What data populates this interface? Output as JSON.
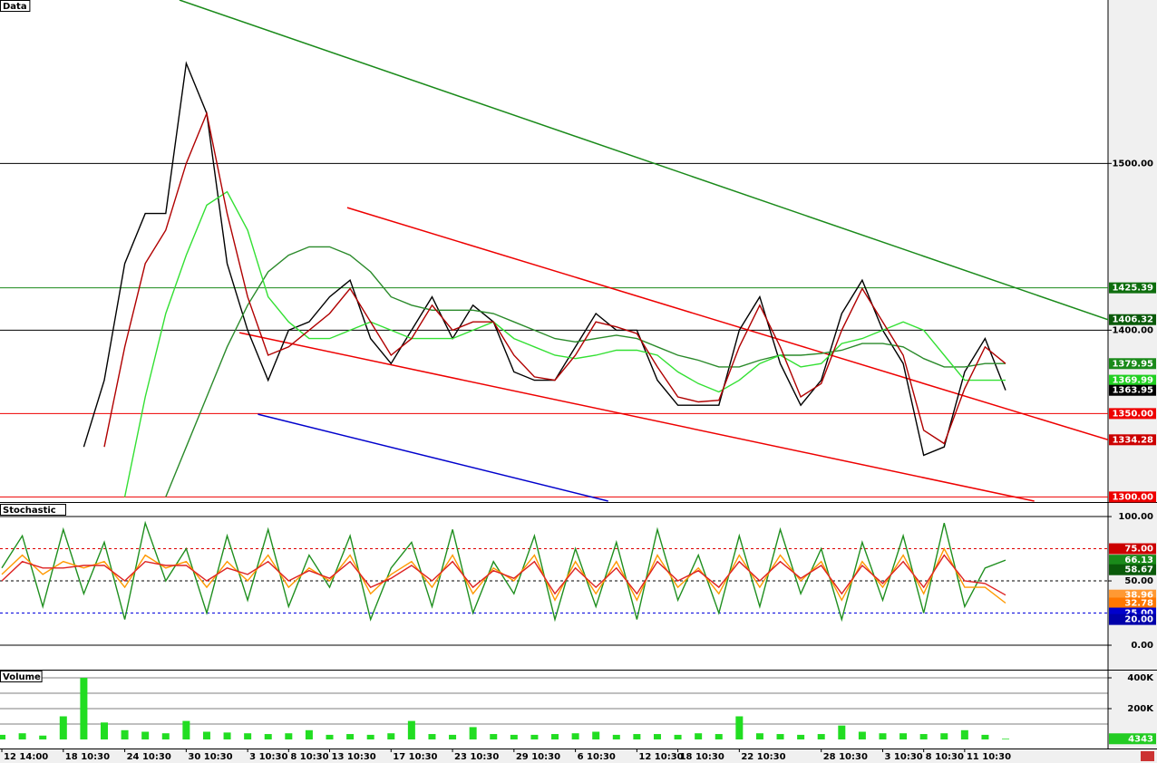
{
  "chart_data": [
    {
      "type": "line",
      "title": "Data",
      "xlim": [
        -0.09,
        54
      ],
      "ylim": [
        1297.5,
        1598
      ],
      "yticks": [
        {
          "value": 1400,
          "label": "1400.00"
        },
        {
          "value": 1500,
          "label": "1500.00"
        }
      ],
      "hlines": [
        {
          "value": 1500,
          "color": "#000000"
        },
        {
          "value": 1425.39,
          "color": "#1a8a1a"
        },
        {
          "value": 1400,
          "color": "#000000"
        },
        {
          "value": 1350,
          "color": "#ee0000"
        },
        {
          "value": 1300,
          "color": "#ee0000"
        }
      ],
      "trendlines": [
        {
          "color": "#1a8a1a",
          "x": [
            8.67,
            54
          ],
          "values": [
            1598,
            1406.32
          ]
        },
        {
          "color": "#ee0000",
          "x": [
            16.86,
            54
          ],
          "values": [
            1473.5,
            1334.28
          ]
        },
        {
          "color": "#ee0000",
          "x": [
            11.6,
            50.4
          ],
          "values": [
            1398.5,
            1297.5
          ]
        },
        {
          "color": "#0000cc",
          "x": [
            12.5,
            29.6
          ],
          "values": [
            1349.6,
            1297.5
          ]
        }
      ],
      "series": [
        {
          "color": "#000000",
          "values": [
            null,
            null,
            null,
            null,
            1330,
            1370,
            1440,
            1470,
            1470,
            1560,
            1530,
            1440,
            1400,
            1370,
            1400,
            1405,
            1420,
            1430,
            1395,
            1380,
            1400,
            1420,
            1395,
            1415,
            1405,
            1375,
            1370,
            1370,
            1390,
            1410,
            1400,
            1400,
            1370,
            1355,
            1355,
            1355,
            1400,
            1420,
            1380,
            1355,
            1370,
            1410,
            1430,
            1400,
            1380,
            1325,
            1330,
            1375,
            1395,
            1364
          ]
        },
        {
          "color": "#2a8a2a",
          "values": [
            null,
            null,
            null,
            null,
            null,
            null,
            null,
            null,
            1300,
            1330,
            1360,
            1390,
            1415,
            1435,
            1445,
            1450,
            1450,
            1445,
            1435,
            1420,
            1415,
            1412,
            1412,
            1412,
            1410,
            1405,
            1400,
            1395,
            1393,
            1395,
            1397,
            1395,
            1390,
            1385,
            1382,
            1378,
            1378,
            1382,
            1385,
            1385,
            1386,
            1388,
            1392,
            1392,
            1390,
            1383,
            1378,
            1378,
            1380,
            1380
          ]
        },
        {
          "color": "#33e033",
          "values": [
            null,
            null,
            null,
            null,
            null,
            null,
            1300,
            1360,
            1410,
            1445,
            1475,
            1483,
            1460,
            1420,
            1405,
            1395,
            1395,
            1400,
            1405,
            1400,
            1395,
            1395,
            1395,
            1400,
            1405,
            1395,
            1390,
            1385,
            1383,
            1385,
            1388,
            1388,
            1385,
            1375,
            1368,
            1363,
            1370,
            1380,
            1385,
            1378,
            1380,
            1392,
            1395,
            1400,
            1405,
            1400,
            1385,
            1370,
            1370,
            1370
          ]
        },
        {
          "color": "#b00000",
          "values": [
            null,
            null,
            null,
            null,
            null,
            1330,
            1390,
            1440,
            1460,
            1500,
            1530,
            1470,
            1420,
            1385,
            1390,
            1400,
            1410,
            1425,
            1405,
            1385,
            1395,
            1415,
            1400,
            1405,
            1405,
            1385,
            1372,
            1370,
            1385,
            1405,
            1402,
            1398,
            1378,
            1360,
            1357,
            1358,
            1390,
            1415,
            1390,
            1360,
            1368,
            1400,
            1425,
            1405,
            1385,
            1340,
            1332,
            1365,
            1390,
            1380
          ]
        }
      ],
      "tags": [
        {
          "value": 1425.39,
          "color": "#0e6e0e"
        },
        {
          "value": 1406.32,
          "color": "#0a5a0a"
        },
        {
          "value": 1379.95,
          "color": "#1a8a1a"
        },
        {
          "value": 1369.99,
          "color": "#22d022"
        },
        {
          "value": 1363.95,
          "color": "#000000"
        },
        {
          "value": 1350,
          "label": "1350.00",
          "color": "#ee0000"
        },
        {
          "value": 1334.28,
          "color": "#cc0000"
        },
        {
          "value": 1300,
          "label": "1300.00",
          "color": "#ee0000"
        }
      ]
    },
    {
      "type": "line",
      "title": "Stochastic",
      "ylim": [
        -18.3,
        109.9
      ],
      "yticks": [
        {
          "value": 100,
          "label": "100.00"
        },
        {
          "value": 50,
          "label": "50.00"
        },
        {
          "value": 0,
          "label": "0.00"
        }
      ],
      "hlines": [
        {
          "value": 100,
          "color": "#000000"
        },
        {
          "value": 75,
          "color": "#dd0000",
          "dashed": true
        },
        {
          "value": 50,
          "color": "#000000",
          "dashed": true
        },
        {
          "value": 25,
          "color": "#0000dd",
          "dashed": true
        },
        {
          "value": 0,
          "color": "#000000"
        }
      ],
      "series": [
        {
          "color": "#1f8f1f",
          "values": [
            60,
            85,
            30,
            90,
            40,
            80,
            20,
            95,
            50,
            75,
            25,
            85,
            35,
            90,
            30,
            70,
            45,
            85,
            20,
            60,
            80,
            30,
            90,
            25,
            65,
            40,
            85,
            20,
            75,
            30,
            80,
            20,
            90,
            35,
            70,
            25,
            85,
            30,
            90,
            40,
            75,
            20,
            80,
            35,
            85,
            25,
            95,
            30,
            60,
            66.13
          ]
        },
        {
          "color": "#ff9900",
          "values": [
            55,
            70,
            55,
            65,
            60,
            65,
            45,
            70,
            60,
            65,
            45,
            65,
            50,
            70,
            45,
            60,
            50,
            70,
            40,
            55,
            65,
            45,
            70,
            40,
            60,
            50,
            70,
            35,
            65,
            40,
            65,
            35,
            70,
            45,
            60,
            40,
            70,
            45,
            70,
            50,
            65,
            35,
            65,
            45,
            70,
            40,
            75,
            45,
            45,
            32.78
          ]
        },
        {
          "color": "#dd2222",
          "values": [
            50,
            65,
            60,
            60,
            62,
            62,
            50,
            65,
            62,
            62,
            50,
            60,
            55,
            65,
            50,
            58,
            52,
            65,
            45,
            52,
            62,
            50,
            65,
            45,
            58,
            52,
            65,
            40,
            60,
            45,
            60,
            40,
            65,
            50,
            58,
            45,
            65,
            50,
            65,
            52,
            62,
            40,
            62,
            48,
            65,
            45,
            70,
            50,
            48,
            38.96
          ]
        }
      ],
      "tags": [
        {
          "value": 75,
          "label": "75.00",
          "color": "#cc0000"
        },
        {
          "value": 66.13,
          "color": "#1a8a1a"
        },
        {
          "value": 58.67,
          "color": "#0a5a0a"
        },
        {
          "value": 38.96,
          "color": "#ff9933"
        },
        {
          "value": 32.78,
          "color": "#ff7700"
        },
        {
          "value": 25,
          "label": "25.00",
          "color": "#0000cc"
        },
        {
          "value": 20,
          "label": "20.00",
          "color": "#0000aa"
        }
      ]
    },
    {
      "type": "bar",
      "title": "Volume",
      "color": "#22dd22",
      "ylim": [
        -58800,
        447000
      ],
      "yticks": [
        {
          "value": 200000,
          "label": "200K"
        },
        {
          "value": 400000,
          "label": "400K"
        }
      ],
      "gridlines": [
        100000,
        300000
      ],
      "categories": [
        "12 14:00",
        null,
        null,
        "18 10:30",
        null,
        null,
        "24 10:30",
        null,
        null,
        "30 10:30",
        null,
        null,
        "3 10:30",
        null,
        "8 10:30",
        null,
        "13 10:30",
        null,
        null,
        "17 10:30",
        null,
        null,
        "23 10:30",
        null,
        null,
        "29 10:30",
        null,
        null,
        "6 10:30",
        null,
        null,
        "12 10:30",
        null,
        "18 10:30",
        null,
        null,
        "22 10:30",
        null,
        null,
        null,
        "28 10:30",
        null,
        null,
        "3 10:30",
        null,
        "8 10:30",
        null,
        "11 10:30",
        null,
        null
      ],
      "values": [
        30000,
        40000,
        25000,
        150000,
        400000,
        110000,
        60000,
        50000,
        40000,
        120000,
        50000,
        45000,
        40000,
        35000,
        40000,
        60000,
        30000,
        35000,
        30000,
        40000,
        120000,
        35000,
        30000,
        80000,
        35000,
        30000,
        30000,
        35000,
        40000,
        50000,
        30000,
        35000,
        35000,
        30000,
        40000,
        35000,
        150000,
        40000,
        35000,
        30000,
        35000,
        90000,
        50000,
        40000,
        40000,
        35000,
        40000,
        60000,
        30000,
        4343
      ],
      "tags": [
        {
          "value": 4343,
          "color": "#22cc22"
        }
      ]
    }
  ]
}
